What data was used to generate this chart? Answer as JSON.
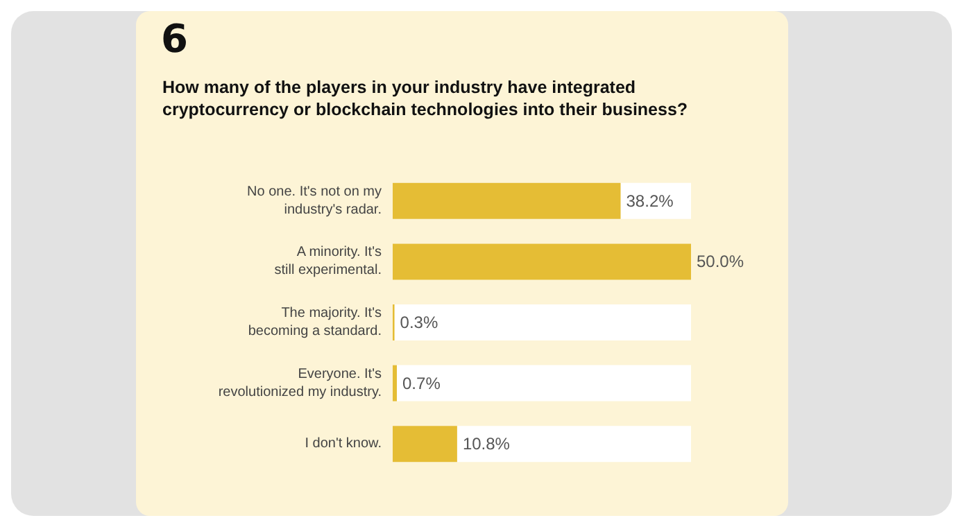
{
  "chart_data": {
    "type": "bar",
    "orientation": "horizontal",
    "title": "How many of the players in your industry have integrated\ncryptocurrency or blockchain technologies into their business?",
    "annotations": [
      "6"
    ],
    "categories": [
      "No one. It's not on my\nindustry's radar.",
      "A minority. It's\nstill experimental.",
      "The majority. It's\nbecoming a standard.",
      "Everyone. It's\nrevolutionized my industry.",
      "I don't know."
    ],
    "values": [
      38.2,
      50.0,
      0.3,
      0.7,
      10.8
    ],
    "value_labels": [
      "38.2%",
      "50.0%",
      "0.3%",
      "0.7%",
      "10.8%"
    ],
    "color": "#e5bd35"
  }
}
